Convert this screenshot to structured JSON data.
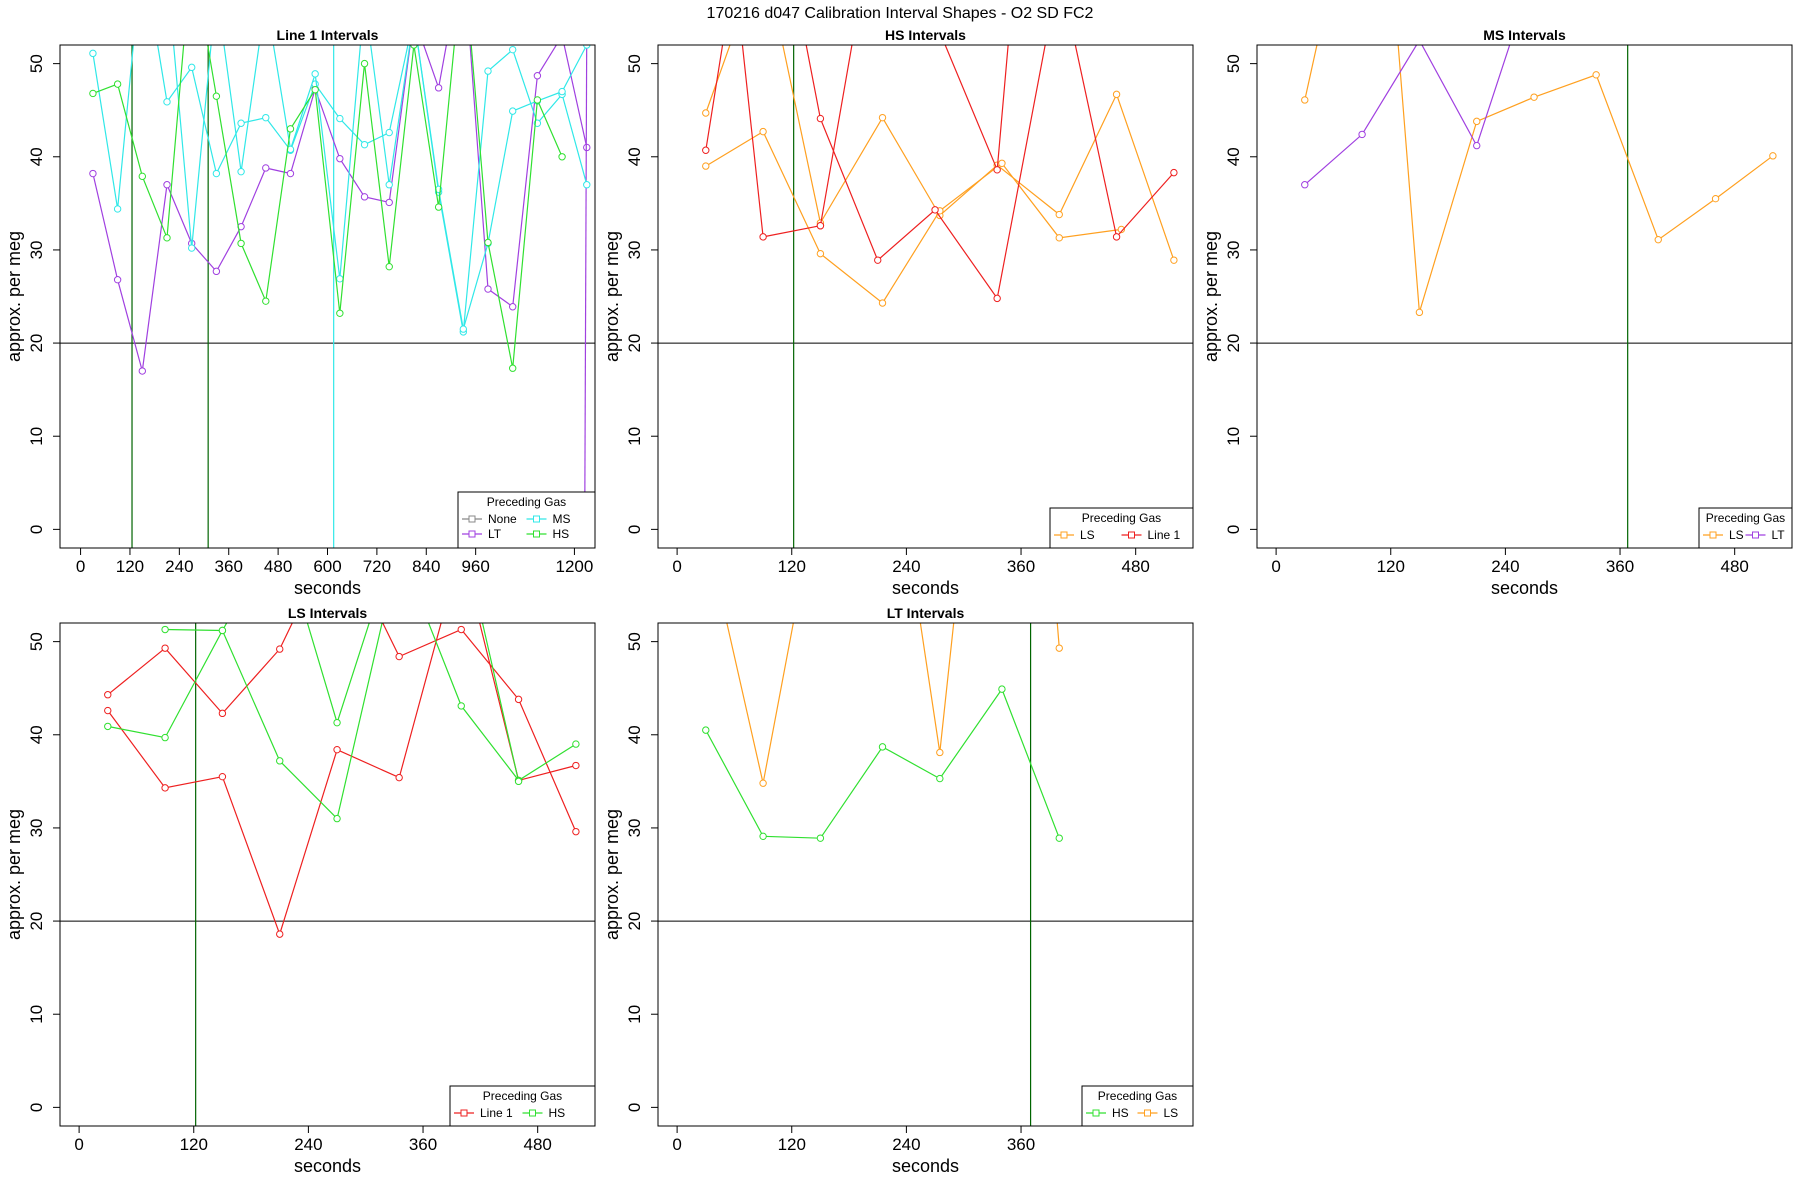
{
  "suptitle": "170216   d047   Calibration Interval Shapes - O2 SD FC2",
  "colors": {
    "None": "#888888",
    "LT": "#a040e0",
    "MS": "#30e8e8",
    "HS": "#30e030",
    "LS": "#ffa020",
    "Line 1": "#ee2020",
    "baseline": "#000000",
    "vline": "#006400"
  },
  "chart_data": [
    {
      "type": "line",
      "title": "Line 1 Intervals",
      "xlabel": "seconds",
      "ylabel": "approx. per meg",
      "xlim": [
        -50,
        1250
      ],
      "ylim": [
        -2,
        52
      ],
      "xticks": [
        0,
        120,
        240,
        360,
        480,
        600,
        720,
        840,
        960,
        1200
      ],
      "yticks": [
        0,
        10,
        20,
        30,
        40,
        50
      ],
      "hline": 20,
      "vlines": [
        {
          "x": 125,
          "color": "HS"
        },
        {
          "x": 310,
          "color": "HS"
        },
        {
          "x": 615,
          "color": "MS"
        }
      ],
      "legend": {
        "title": "Preceding Gas",
        "entries": [
          "None",
          "MS",
          "LT",
          "HS"
        ],
        "ncol": 2,
        "position": "bottom-right"
      },
      "series": [
        {
          "name": "LT",
          "x": [
            30,
            90,
            150,
            210,
            270,
            330,
            390,
            450,
            510,
            570,
            630,
            690,
            750,
            810,
            870,
            930,
            990,
            1050,
            1110,
            1170,
            1230
          ],
          "y": [
            38.2,
            26.8,
            17.0,
            37.0,
            30.7,
            27.7,
            32.5,
            38.8,
            38.2,
            47.3,
            39.8,
            35.7,
            35.1,
            55.0,
            47.4,
            62.0,
            25.8,
            23.9,
            48.7,
            53.0,
            41.0
          ]
        },
        {
          "name": "LT",
          "x": [
            1225,
            1230
          ],
          "y": [
            0.0,
            55.0
          ]
        },
        {
          "name": "MS",
          "x": [
            30,
            90,
            150,
            210,
            270,
            330,
            390,
            450,
            510,
            570,
            630,
            690,
            750,
            810,
            870,
            930,
            990,
            1050,
            1110,
            1170,
            1230
          ],
          "y": [
            51.1,
            34.4,
            62.0,
            45.9,
            49.6,
            38.2,
            43.6,
            44.2,
            40.7,
            47.8,
            44.1,
            41.3,
            42.6,
            55.0,
            36.2,
            21.2,
            49.2,
            51.5,
            43.6,
            46.7,
            37.0
          ]
        },
        {
          "name": "MS",
          "x": [
            210,
            270,
            330,
            390,
            450,
            510,
            570,
            630,
            690,
            750,
            810,
            870,
            930,
            990,
            1050,
            1110,
            1170,
            1230
          ],
          "y": [
            60.0,
            30.2,
            58.0,
            38.4,
            57.0,
            40.8,
            48.9,
            26.9,
            57.0,
            37.0,
            55.0,
            36.5,
            21.5,
            30.7,
            44.9,
            46.0,
            47.0,
            52.0
          ]
        },
        {
          "name": "HS",
          "x": [
            30,
            90,
            150,
            210,
            270,
            330,
            390,
            450,
            510,
            570,
            630,
            690,
            750,
            810,
            870,
            930,
            990,
            1050,
            1110,
            1170
          ],
          "y": [
            46.8,
            47.8,
            37.9,
            31.3,
            62.0,
            46.5,
            30.7,
            24.5,
            43.0,
            47.2,
            23.2,
            50.0,
            28.2,
            52.0,
            34.6,
            62.0,
            30.8,
            17.3,
            46.1,
            40.0
          ]
        }
      ]
    },
    {
      "type": "line",
      "title": "HS Intervals",
      "xlabel": "seconds",
      "ylabel": "approx. per meg",
      "xlim": [
        -20,
        540
      ],
      "ylim": [
        -2,
        52
      ],
      "xticks": [
        0,
        120,
        240,
        360,
        480
      ],
      "yticks": [
        0,
        10,
        20,
        30,
        40,
        50
      ],
      "hline": 20,
      "vlines": [
        {
          "x": 122,
          "color": "HS"
        }
      ],
      "legend": {
        "title": "Preceding Gas",
        "entries": [
          "LS",
          "Line 1"
        ],
        "ncol": 2,
        "position": "bottom-right"
      },
      "series": [
        {
          "name": "LS",
          "x": [
            30,
            90,
            150,
            215,
            275,
            335,
            400,
            460,
            520
          ],
          "y": [
            44.7,
            62.0,
            32.9,
            44.2,
            33.7,
            39.1,
            33.8,
            46.7,
            28.9
          ]
        },
        {
          "name": "LS",
          "x": [
            30,
            90,
            150,
            215,
            275,
            340,
            400,
            465
          ],
          "y": [
            39.0,
            42.7,
            29.6,
            24.3,
            34.2,
            39.3,
            31.3,
            32.2
          ]
        },
        {
          "name": "Line 1",
          "x": [
            30,
            60,
            90,
            150
          ],
          "y": [
            40.7,
            60.0,
            31.4,
            32.6
          ]
        },
        {
          "name": "Line 1",
          "x": [
            120,
            150,
            210,
            270,
            335,
            400,
            460,
            520
          ],
          "y": [
            60.0,
            44.1,
            28.9,
            34.3,
            24.8,
            60.0,
            31.4,
            38.3
          ]
        },
        {
          "name": "Line 1",
          "x": [
            150,
            200,
            240,
            335,
            355
          ],
          "y": [
            32.6,
            62.0,
            62.0,
            38.6,
            62.0
          ]
        }
      ]
    },
    {
      "type": "line",
      "title": "MS Intervals",
      "xlabel": "seconds",
      "ylabel": "approx. per meg",
      "xlim": [
        -20,
        540
      ],
      "ylim": [
        -2,
        52
      ],
      "xticks": [
        0,
        120,
        240,
        360,
        480
      ],
      "yticks": [
        0,
        10,
        20,
        30,
        40,
        50
      ],
      "hline": 20,
      "vlines": [
        {
          "x": 368,
          "color": "HS"
        }
      ],
      "legend": {
        "title": "Preceding Gas",
        "entries": [
          "LS",
          "LT"
        ],
        "ncol": 2,
        "position": "bottom-right"
      },
      "series": [
        {
          "name": "LS",
          "x": [
            30,
            60
          ],
          "y": [
            46.1,
            60.0
          ]
        },
        {
          "name": "LS",
          "x": [
            120,
            150,
            210,
            270,
            335,
            400,
            460,
            520
          ],
          "y": [
            62.0,
            23.3,
            43.8,
            46.4,
            48.8,
            31.1,
            35.5,
            40.1
          ]
        },
        {
          "name": "LT",
          "x": [
            30,
            90,
            150,
            210,
            270
          ],
          "y": [
            37.0,
            42.4,
            52.5,
            41.2,
            60.0
          ]
        }
      ]
    },
    {
      "type": "line",
      "title": "LS Intervals",
      "xlabel": "seconds",
      "ylabel": "approx. per meg",
      "xlim": [
        -20,
        540
      ],
      "ylim": [
        -2,
        52
      ],
      "xticks": [
        0,
        120,
        240,
        360,
        480
      ],
      "yticks": [
        0,
        10,
        20,
        30,
        40,
        50
      ],
      "hline": 20,
      "vlines": [
        {
          "x": 122,
          "color": "HS"
        }
      ],
      "legend": {
        "title": "Preceding Gas",
        "entries": [
          "Line 1",
          "HS"
        ],
        "ncol": 2,
        "position": "bottom-right"
      },
      "series": [
        {
          "name": "Line 1",
          "x": [
            30,
            90,
            150,
            210,
            270,
            335,
            400,
            460,
            520
          ],
          "y": [
            44.3,
            49.3,
            42.3,
            49.2,
            62.0,
            48.4,
            51.3,
            43.8,
            29.6
          ]
        },
        {
          "name": "Line 1",
          "x": [
            30,
            90,
            150,
            210,
            270,
            335,
            400,
            460,
            520
          ],
          "y": [
            42.6,
            34.3,
            35.5,
            18.6,
            38.4,
            35.4,
            60.0,
            35.1,
            36.7
          ]
        },
        {
          "name": "HS",
          "x": [
            30,
            90,
            150,
            210,
            270,
            335,
            400,
            460,
            520
          ],
          "y": [
            40.9,
            39.7,
            51.2,
            37.2,
            31.0,
            60.0,
            43.1,
            35.1,
            39.0
          ]
        },
        {
          "name": "HS",
          "x": [
            90,
            150,
            210,
            270,
            335,
            400,
            460
          ],
          "y": [
            51.3,
            51.2,
            62.0,
            41.3,
            62.0,
            62.0,
            35.0
          ]
        }
      ]
    },
    {
      "type": "line",
      "title": "LT Intervals",
      "xlabel": "seconds",
      "ylabel": "approx. per meg",
      "xlim": [
        -20,
        540
      ],
      "ylim": [
        -2,
        52
      ],
      "xticks": [
        0,
        120,
        240,
        360
      ],
      "yticks": [
        0,
        10,
        20,
        30,
        40,
        50
      ],
      "hline": 20,
      "vlines": [
        {
          "x": 370,
          "color": "HS"
        }
      ],
      "legend": {
        "title": "Preceding Gas",
        "entries": [
          "HS",
          "LS"
        ],
        "ncol": 2,
        "position": "bottom-right"
      },
      "series": [
        {
          "name": "HS",
          "x": [
            30,
            90,
            150,
            215,
            275,
            340,
            400
          ],
          "y": [
            40.5,
            29.1,
            28.9,
            38.7,
            35.3,
            44.9,
            28.9
          ]
        },
        {
          "name": "LS",
          "x": [
            30,
            90,
            140,
            240,
            275,
            300,
            390,
            400
          ],
          "y": [
            62.0,
            34.8,
            62.0,
            62.0,
            38.1,
            62.0,
            62.0,
            49.3
          ]
        }
      ]
    }
  ]
}
